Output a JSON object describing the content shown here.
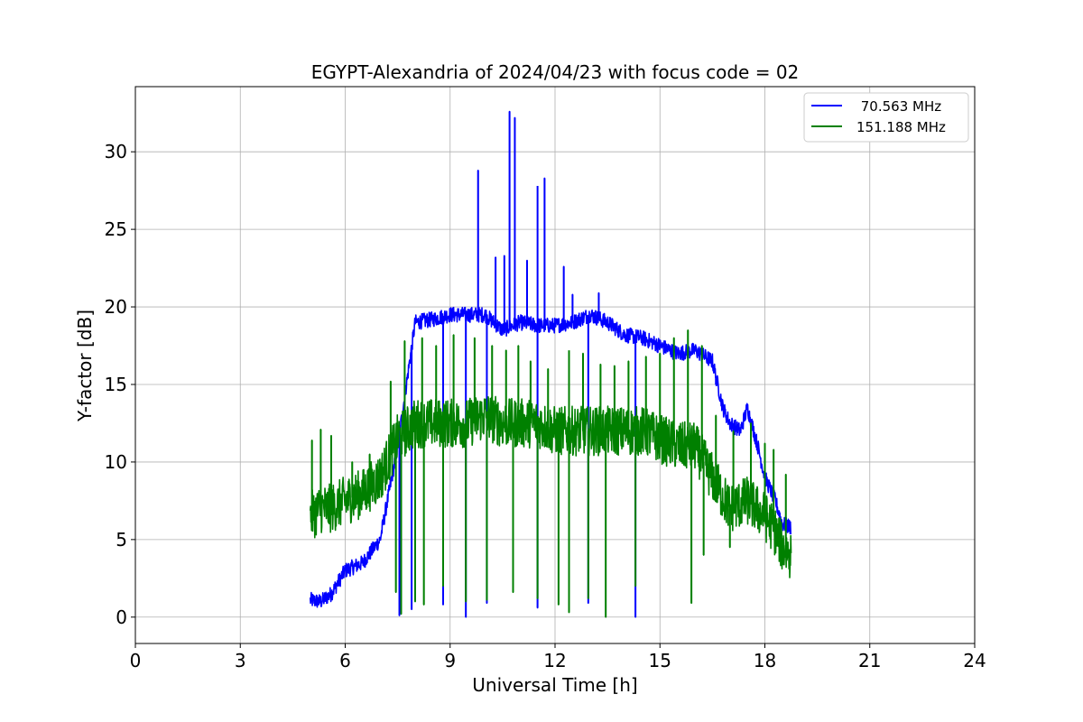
{
  "chart_data": {
    "type": "line",
    "title": "EGYPT-Alexandria of 2024/04/23 with focus code = 02",
    "xlabel": "Universal Time [h]",
    "ylabel": "Y-factor [dB]",
    "xlim": [
      0,
      24
    ],
    "ylim": [
      -1.7,
      34.2
    ],
    "xticks": [
      0,
      3,
      6,
      9,
      12,
      15,
      18,
      21,
      24
    ],
    "yticks": [
      0,
      5,
      10,
      15,
      20,
      25,
      30
    ],
    "xtick_labels": [
      "0",
      "3",
      "6",
      "9",
      "12",
      "15",
      "18",
      "21",
      "24"
    ],
    "ytick_labels": [
      "0",
      "5",
      "10",
      "15",
      "20",
      "25",
      "30"
    ],
    "grid": true,
    "legend_position": "top-right",
    "series": [
      {
        "name": " 70.563 MHz",
        "color": "#0000ff",
        "baseline": [
          [
            5.0,
            1.1
          ],
          [
            5.3,
            1.0
          ],
          [
            5.6,
            1.5
          ],
          [
            6.0,
            3.0
          ],
          [
            6.5,
            3.5
          ],
          [
            7.0,
            5.0
          ],
          [
            7.5,
            11.0
          ],
          [
            8.0,
            19.0
          ],
          [
            8.5,
            19.2
          ],
          [
            9.0,
            19.5
          ],
          [
            9.5,
            19.5
          ],
          [
            10.0,
            19.5
          ],
          [
            10.5,
            18.5
          ],
          [
            11.0,
            19.0
          ],
          [
            11.5,
            18.8
          ],
          [
            12.0,
            18.8
          ],
          [
            12.5,
            19.0
          ],
          [
            13.0,
            19.5
          ],
          [
            13.5,
            19.0
          ],
          [
            14.0,
            18.2
          ],
          [
            14.5,
            18.0
          ],
          [
            15.0,
            17.5
          ],
          [
            15.5,
            17.0
          ],
          [
            16.0,
            17.2
          ],
          [
            16.5,
            16.5
          ],
          [
            16.8,
            13.5
          ],
          [
            17.0,
            12.5
          ],
          [
            17.3,
            12.0
          ],
          [
            17.5,
            13.5
          ],
          [
            17.8,
            11.0
          ],
          [
            18.0,
            9.0
          ],
          [
            18.3,
            7.5
          ],
          [
            18.5,
            6.0
          ],
          [
            18.75,
            5.8
          ]
        ],
        "spikes": [
          [
            9.8,
            28.8
          ],
          [
            10.7,
            32.6
          ],
          [
            10.85,
            32.2
          ],
          [
            11.5,
            27.8
          ],
          [
            11.7,
            28.3
          ],
          [
            10.3,
            23.2
          ],
          [
            10.55,
            23.3
          ],
          [
            11.2,
            23.0
          ],
          [
            12.25,
            22.6
          ],
          [
            12.5,
            20.8
          ],
          [
            13.25,
            20.9
          ],
          [
            9.45,
            0.0
          ],
          [
            7.55,
            0.1
          ],
          [
            14.3,
            0.0
          ],
          [
            8.8,
            0.8
          ],
          [
            7.9,
            0.5
          ],
          [
            11.5,
            0.6
          ],
          [
            12.95,
            0.9
          ],
          [
            10.05,
            0.9
          ],
          [
            16.6,
            15.0
          ]
        ]
      },
      {
        "name": "151.188 MHz",
        "color": "#008000",
        "baseline": [
          [
            5.0,
            6.5
          ],
          [
            5.3,
            7.0
          ],
          [
            5.6,
            7.0
          ],
          [
            6.0,
            7.5
          ],
          [
            6.5,
            8.0
          ],
          [
            7.0,
            9.0
          ],
          [
            7.5,
            11.5
          ],
          [
            8.0,
            12.5
          ],
          [
            8.5,
            12.5
          ],
          [
            9.0,
            12.5
          ],
          [
            9.5,
            12.5
          ],
          [
            10.0,
            13.0
          ],
          [
            10.5,
            12.5
          ],
          [
            11.0,
            12.5
          ],
          [
            11.5,
            12.5
          ],
          [
            12.0,
            12.0
          ],
          [
            12.5,
            12.0
          ],
          [
            13.0,
            12.0
          ],
          [
            13.5,
            12.0
          ],
          [
            14.0,
            12.0
          ],
          [
            14.5,
            12.0
          ],
          [
            15.0,
            11.5
          ],
          [
            15.5,
            11.0
          ],
          [
            16.0,
            11.0
          ],
          [
            16.5,
            9.0
          ],
          [
            17.0,
            7.0
          ],
          [
            17.5,
            7.5
          ],
          [
            18.0,
            6.5
          ],
          [
            18.3,
            5.5
          ],
          [
            18.5,
            4.5
          ],
          [
            18.75,
            4.0
          ]
        ],
        "spikes": [
          [
            5.05,
            11.4
          ],
          [
            5.3,
            12.1
          ],
          [
            5.6,
            11.7
          ],
          [
            6.2,
            10.0
          ],
          [
            6.7,
            10.5
          ],
          [
            7.3,
            15.2
          ],
          [
            7.7,
            17.8
          ],
          [
            8.2,
            18.0
          ],
          [
            8.6,
            17.5
          ],
          [
            9.1,
            18.2
          ],
          [
            9.7,
            18.0
          ],
          [
            10.2,
            17.5
          ],
          [
            10.6,
            17.2
          ],
          [
            10.95,
            17.5
          ],
          [
            11.3,
            16.5
          ],
          [
            11.8,
            16.0
          ],
          [
            12.4,
            17.2
          ],
          [
            12.8,
            17.0
          ],
          [
            13.3,
            16.3
          ],
          [
            13.7,
            16.2
          ],
          [
            14.1,
            16.5
          ],
          [
            14.6,
            16.8
          ],
          [
            15.0,
            17.0
          ],
          [
            15.4,
            18.0
          ],
          [
            15.8,
            18.5
          ],
          [
            16.2,
            17.5
          ],
          [
            16.6,
            13.0
          ],
          [
            17.1,
            12.0
          ],
          [
            17.6,
            12.5
          ],
          [
            18.0,
            11.2
          ],
          [
            18.25,
            10.8
          ],
          [
            18.6,
            9.2
          ],
          [
            7.45,
            1.6
          ],
          [
            7.6,
            0.2
          ],
          [
            8.0,
            1.0
          ],
          [
            8.25,
            0.8
          ],
          [
            8.8,
            2.0
          ],
          [
            9.45,
            1.0
          ],
          [
            10.05,
            1.1
          ],
          [
            10.8,
            1.6
          ],
          [
            11.5,
            1.2
          ],
          [
            12.1,
            0.8
          ],
          [
            12.4,
            0.3
          ],
          [
            12.95,
            1.2
          ],
          [
            13.45,
            0.0
          ],
          [
            14.3,
            2.0
          ],
          [
            15.9,
            0.9
          ],
          [
            16.25,
            4.0
          ],
          [
            17.0,
            4.5
          ]
        ]
      }
    ]
  }
}
